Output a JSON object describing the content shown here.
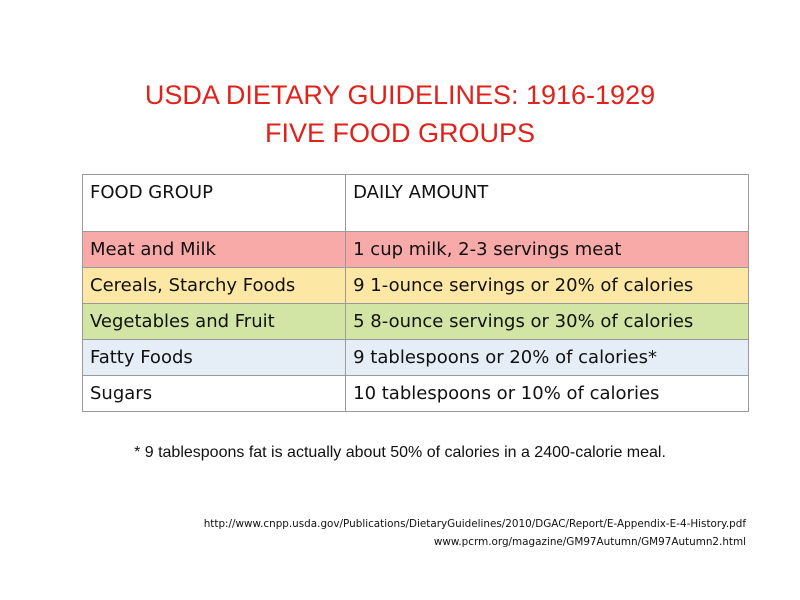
{
  "title": {
    "line1": "USDA DIETARY GUIDELINES: 1916-1929",
    "line2": "FIVE FOOD GROUPS"
  },
  "table": {
    "headers": [
      "FOOD GROUP",
      "DAILY AMOUNT"
    ],
    "rows": [
      {
        "group": "Meat and Milk",
        "amount": "1 cup milk, 2-3 servings meat",
        "color": "#f8aaa8"
      },
      {
        "group": "Cereals, Starchy Foods",
        "amount": "9 1-ounce servings or 20% of calories",
        "color": "#fde7a4"
      },
      {
        "group": "Vegetables and Fruit",
        "amount": "5 8-ounce servings or 30% of calories",
        "color": "#d3e5a5"
      },
      {
        "group": "Fatty Foods",
        "amount": "9 tablespoons or 20% of calories*",
        "color": "#e5edf7"
      },
      {
        "group": "Sugars",
        "amount": "10 tablespoons or 10% of calories",
        "color": "#ffffff"
      }
    ]
  },
  "footnote": "* 9 tablespoons fat is actually about 50% of calories in a 2400-calorie meal.",
  "sources": [
    "http://www.cnpp.usda.gov/Publications/DietaryGuidelines/2010/DGAC/Report/E-Appendix-E-4-History.pdf",
    "www.pcrm.org/magazine/GM97Autumn/GM97Autumn2.html"
  ],
  "colors": {
    "title": "#e0221b",
    "border": "#9a9a9a"
  }
}
